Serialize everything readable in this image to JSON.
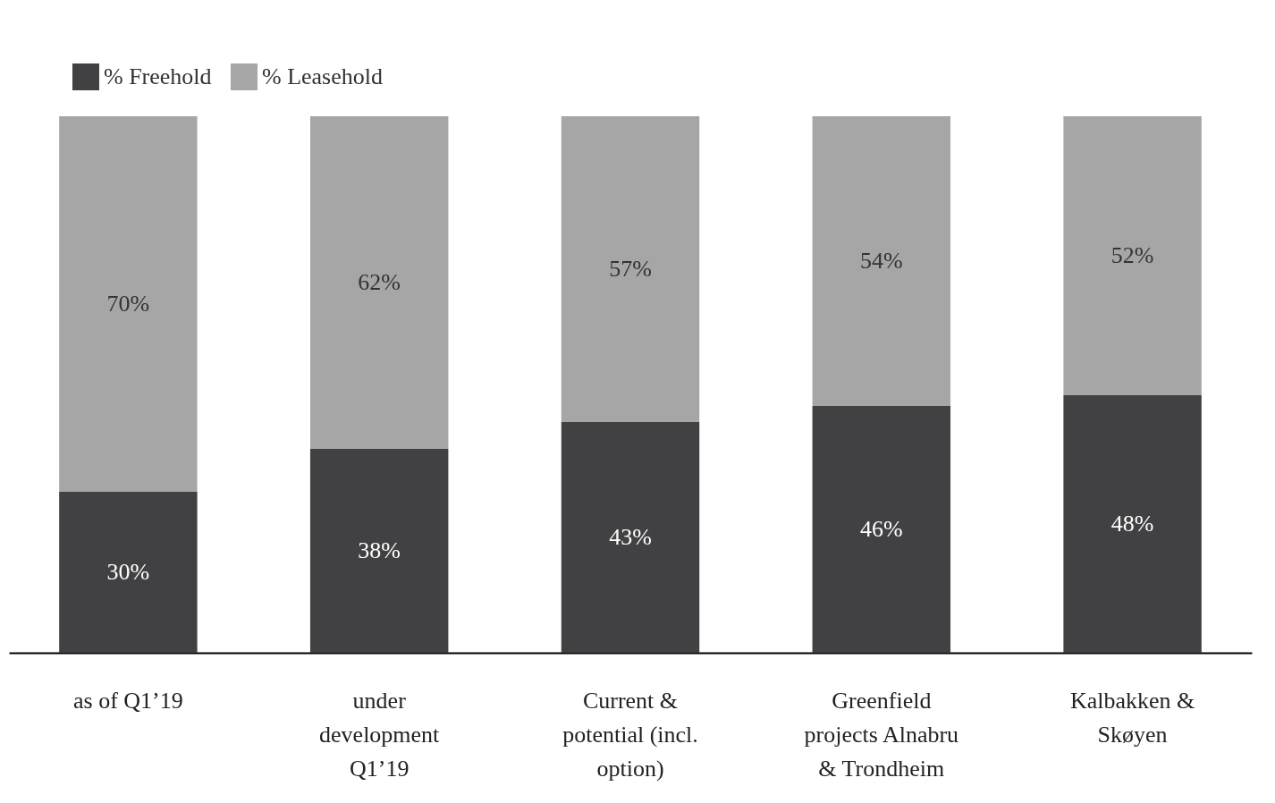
{
  "chart_data": {
    "type": "bar",
    "stacked": true,
    "legend": "top left",
    "categories": [
      "as of Q1’19",
      "under development Q1’19",
      "Current & potential (incl. option)",
      "Greenfield projects Alnabru & Trondheim",
      "Kalbakken & Skøyen"
    ],
    "series": [
      {
        "name": "% Freehold",
        "color": "#414042",
        "values": [
          30,
          38,
          43,
          46,
          48
        ],
        "value_labels": [
          "30%",
          "38%",
          "43%",
          "46%",
          "48%"
        ]
      },
      {
        "name": "% Leasehold",
        "color": "#a6a6a6",
        "values": [
          70,
          62,
          57,
          54,
          52
        ],
        "value_labels": [
          "70%",
          "62%",
          "57%",
          "54%",
          "52%"
        ]
      }
    ]
  }
}
